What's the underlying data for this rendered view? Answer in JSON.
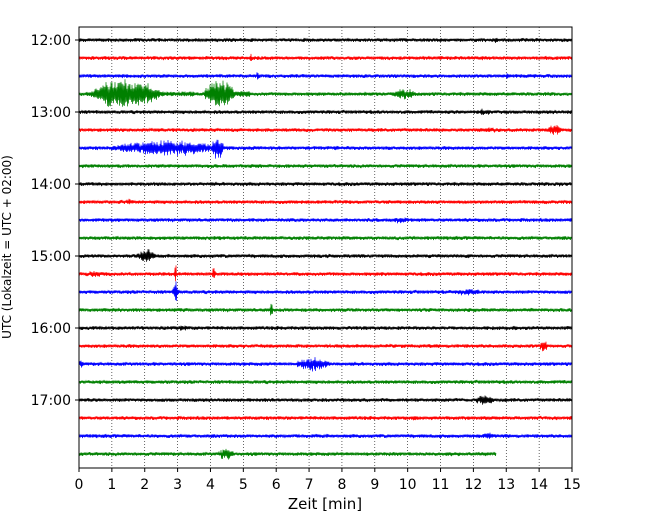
{
  "chart_data": {
    "type": "line",
    "title": "",
    "xlabel": "Zeit  [min]",
    "ylabel": "UTC (Lokalzeit = UTC + 02:00)",
    "xlim": [
      0,
      15
    ],
    "x_ticks": [
      0,
      1,
      2,
      3,
      4,
      5,
      6,
      7,
      8,
      9,
      10,
      11,
      12,
      13,
      14,
      15
    ],
    "x_tick_labels": [
      "0",
      "1",
      "2",
      "3",
      "4",
      "5",
      "6",
      "7",
      "8",
      "9",
      "10",
      "11",
      "12",
      "13",
      "14",
      "15"
    ],
    "y_tick_labels": [
      "12:00",
      "13:00",
      "14:00",
      "15:00",
      "16:00",
      "17:00"
    ],
    "y_tick_trace_index": [
      0,
      4,
      8,
      12,
      16,
      20
    ],
    "grid": "vertical dotted",
    "colors": [
      "#000000",
      "#ff0000",
      "#0000ff",
      "#008000"
    ],
    "noise_amplitude": 2.2,
    "traces": [
      {
        "start": "12:00",
        "color": "#000000",
        "end_min": 15,
        "events": [
          {
            "t": 12.5,
            "dur": 0.4,
            "amp": 4
          }
        ]
      },
      {
        "start": "12:15",
        "color": "#ff0000",
        "end_min": 15,
        "events": [
          {
            "t": 5.2,
            "dur": 0.1,
            "amp": 6
          },
          {
            "t": 12.2,
            "dur": 0.3,
            "amp": 3
          }
        ]
      },
      {
        "start": "12:30",
        "color": "#0000ff",
        "end_min": 15,
        "events": [
          {
            "t": 5.4,
            "dur": 0.1,
            "amp": 8
          },
          {
            "t": 13.0,
            "dur": 0.1,
            "amp": 6
          }
        ]
      },
      {
        "start": "12:45",
        "color": "#008000",
        "end_min": 15,
        "events": [
          {
            "t": 0.3,
            "dur": 3.2,
            "amp": 18
          },
          {
            "t": 3.8,
            "dur": 1.4,
            "amp": 20
          },
          {
            "t": 9.5,
            "dur": 1.2,
            "amp": 6
          }
        ]
      },
      {
        "start": "13:00",
        "color": "#000000",
        "end_min": 15,
        "events": [
          {
            "t": 12.0,
            "dur": 1.0,
            "amp": 4
          }
        ]
      },
      {
        "start": "13:15",
        "color": "#ff0000",
        "end_min": 15,
        "events": [
          {
            "t": 12.0,
            "dur": 1.5,
            "amp": 3
          },
          {
            "t": 14.2,
            "dur": 0.8,
            "amp": 7
          }
        ]
      },
      {
        "start": "13:30",
        "color": "#0000ff",
        "end_min": 15,
        "events": [
          {
            "t": 0.8,
            "dur": 5.5,
            "amp": 9
          },
          {
            "t": 4.0,
            "dur": 0.6,
            "amp": 14
          }
        ]
      },
      {
        "start": "13:45",
        "color": "#008000",
        "end_min": 15,
        "events": []
      },
      {
        "start": "14:00",
        "color": "#000000",
        "end_min": 15,
        "events": [
          {
            "t": 14.5,
            "dur": 0.4,
            "amp": 3
          }
        ]
      },
      {
        "start": "14:15",
        "color": "#ff0000",
        "end_min": 15,
        "events": [
          {
            "t": 1.4,
            "dur": 0.4,
            "amp": 4
          },
          {
            "t": 6.6,
            "dur": 0.1,
            "amp": 3
          }
        ]
      },
      {
        "start": "14:30",
        "color": "#0000ff",
        "end_min": 15,
        "events": [
          {
            "t": 9.5,
            "dur": 0.8,
            "amp": 4
          }
        ]
      },
      {
        "start": "14:45",
        "color": "#008000",
        "end_min": 15,
        "events": [
          {
            "t": 7.8,
            "dur": 0.1,
            "amp": 3
          }
        ]
      },
      {
        "start": "15:00",
        "color": "#000000",
        "end_min": 15,
        "events": [
          {
            "t": 1.7,
            "dur": 1.0,
            "amp": 8
          },
          {
            "t": 11.8,
            "dur": 0.1,
            "amp": 4
          }
        ]
      },
      {
        "start": "15:15",
        "color": "#ff0000",
        "end_min": 15,
        "events": [
          {
            "t": 0.2,
            "dur": 0.8,
            "amp": 4
          },
          {
            "t": 2.9,
            "dur": 0.1,
            "amp": 12
          },
          {
            "t": 4.05,
            "dur": 0.15,
            "amp": 12
          },
          {
            "t": 9.2,
            "dur": 0.1,
            "amp": 4
          }
        ]
      },
      {
        "start": "15:30",
        "color": "#0000ff",
        "end_min": 15,
        "events": [
          {
            "t": 2.85,
            "dur": 0.25,
            "amp": 16
          },
          {
            "t": 11.2,
            "dur": 1.8,
            "amp": 4
          }
        ]
      },
      {
        "start": "15:45",
        "color": "#008000",
        "end_min": 15,
        "events": [
          {
            "t": 5.8,
            "dur": 0.15,
            "amp": 12
          },
          {
            "t": 3.0,
            "dur": 0.5,
            "amp": 3
          }
        ]
      },
      {
        "start": "16:00",
        "color": "#000000",
        "end_min": 15,
        "events": [
          {
            "t": 3.0,
            "dur": 0.5,
            "amp": 4
          }
        ]
      },
      {
        "start": "16:15",
        "color": "#ff0000",
        "end_min": 15,
        "events": [
          {
            "t": 14.0,
            "dur": 0.4,
            "amp": 8
          }
        ]
      },
      {
        "start": "16:30",
        "color": "#0000ff",
        "end_min": 15,
        "events": [
          {
            "t": 0.0,
            "dur": 0.2,
            "amp": 6
          },
          {
            "t": 6.5,
            "dur": 1.8,
            "amp": 8
          }
        ]
      },
      {
        "start": "16:45",
        "color": "#008000",
        "end_min": 15,
        "events": []
      },
      {
        "start": "17:00",
        "color": "#000000",
        "end_min": 15,
        "events": [
          {
            "t": 12.0,
            "dur": 1.0,
            "amp": 6
          }
        ]
      },
      {
        "start": "17:15",
        "color": "#ff0000",
        "end_min": 15,
        "events": [
          {
            "t": 10.0,
            "dur": 0.6,
            "amp": 3
          }
        ]
      },
      {
        "start": "17:30",
        "color": "#0000ff",
        "end_min": 15,
        "events": [
          {
            "t": 12.2,
            "dur": 0.8,
            "amp": 4
          }
        ]
      },
      {
        "start": "17:45",
        "color": "#008000",
        "end_min": 12.7,
        "events": [
          {
            "t": 4.2,
            "dur": 0.8,
            "amp": 7
          }
        ]
      }
    ]
  }
}
